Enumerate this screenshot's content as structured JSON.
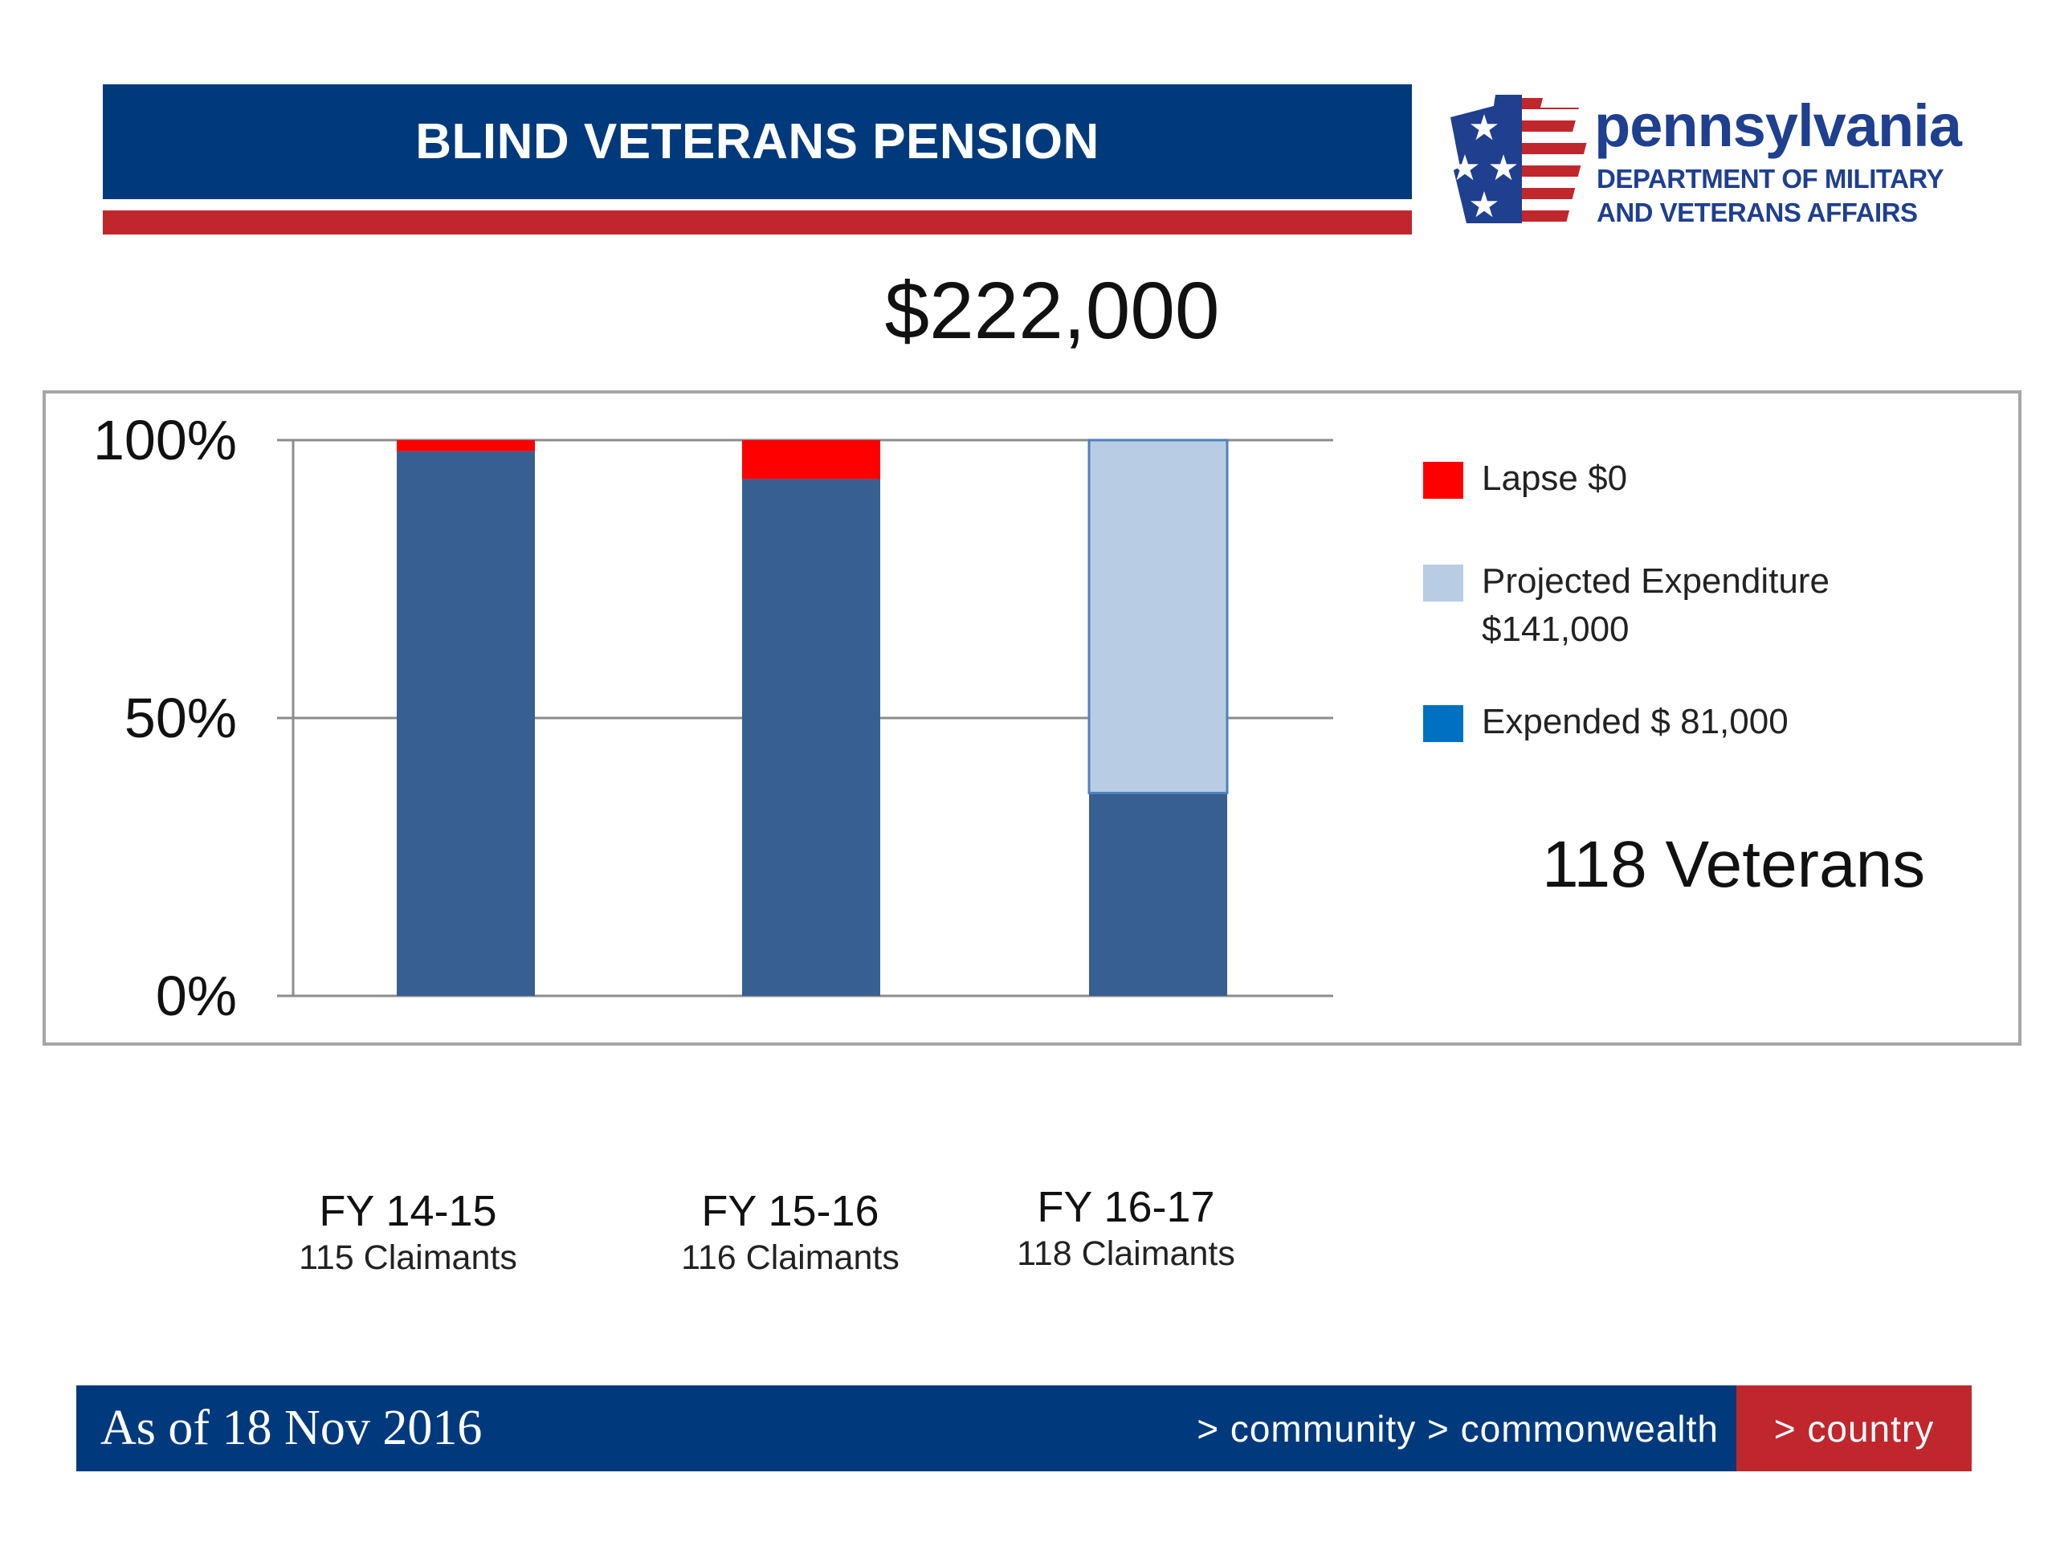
{
  "header": {
    "title": "BLIND VETERANS PENSION"
  },
  "logo": {
    "word": "pennsylvania",
    "dept_line1": "DEPARTMENT OF MILITARY",
    "dept_line2": "AND VETERANS AFFAIRS"
  },
  "total": "$222,000",
  "veterans": "118 Veterans",
  "colors": {
    "expended": "#385f92",
    "projected": "#b8cce4",
    "lapse": "#ff0000",
    "legend_expended": "#0070c0",
    "header_blue": "#003a7d",
    "stripe_red": "#c0272d"
  },
  "legend": [
    {
      "label_lines": [
        "Lapse $0"
      ],
      "color": "#ff0000"
    },
    {
      "label_lines": [
        "Projected Expenditure",
        "$141,000"
      ],
      "color": "#b8cce4"
    },
    {
      "label_lines": [
        "Expended $ 81,000"
      ],
      "color": "#0070c0"
    }
  ],
  "chart_data": {
    "type": "bar",
    "stacked": true,
    "categories": [
      "FY 14-15",
      "FY 15-16",
      "FY 16-17"
    ],
    "category_sublabels": [
      "115 Claimants",
      "116 Claimants",
      "118 Claimants"
    ],
    "series": [
      {
        "name": "Expended $ 81,000",
        "values": [
          98,
          93,
          36.5
        ]
      },
      {
        "name": "Projected Expenditure $141,000",
        "values": [
          0,
          0,
          63.5
        ]
      },
      {
        "name": "Lapse $0",
        "values": [
          2,
          7,
          0
        ]
      }
    ],
    "ylim": [
      0,
      100
    ],
    "yticks": [
      "0%",
      "50%",
      "100%"
    ],
    "grid": true,
    "legend_position": "right"
  },
  "footer": {
    "date": "As of 18 Nov 2016",
    "tagline": "> community > commonwealth",
    "country": "> country"
  }
}
